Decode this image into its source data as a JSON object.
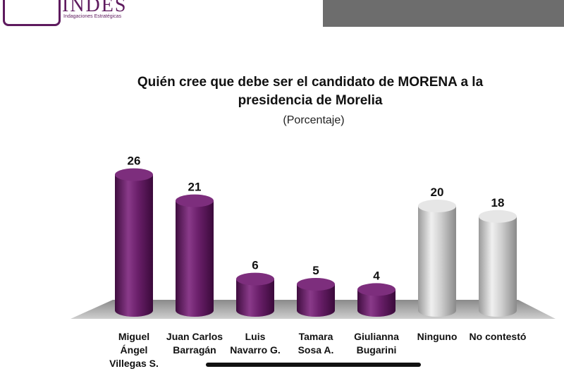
{
  "logo": {
    "name": "INDES",
    "tagline": "Indagaciones Estratégicas"
  },
  "chart_data": {
    "type": "bar",
    "title": "Quién cree que debe ser el candidato de MORENA a la presidencia de Morelia",
    "subtitle": "(Porcentaje)",
    "categories": [
      "Miguel Ángel Villegas S.",
      "Juan Carlos Barragán",
      "Luis Navarro G.",
      "Tamara Sosa A.",
      "Giulianna Bugarini",
      "Ninguno",
      "No contestó"
    ],
    "category_lines": [
      [
        "Miguel",
        "Ángel",
        "Villegas S."
      ],
      [
        "Juan Carlos",
        "Barragán"
      ],
      [
        "Luis",
        "Navarro G."
      ],
      [
        "Tamara",
        "Sosa A."
      ],
      [
        "Giulianna",
        "Bugarini"
      ],
      [
        "Ninguno"
      ],
      [
        "No contestó"
      ]
    ],
    "values": [
      26,
      21,
      6,
      5,
      4,
      20,
      18
    ],
    "bar_colors": [
      "#6a1f6a",
      "#6a1f6a",
      "#6a1f6a",
      "#6a1f6a",
      "#6a1f6a",
      "#c8c8c8",
      "#c8c8c8"
    ],
    "ylim": [
      0,
      30
    ],
    "grid": false,
    "legend": "none"
  }
}
